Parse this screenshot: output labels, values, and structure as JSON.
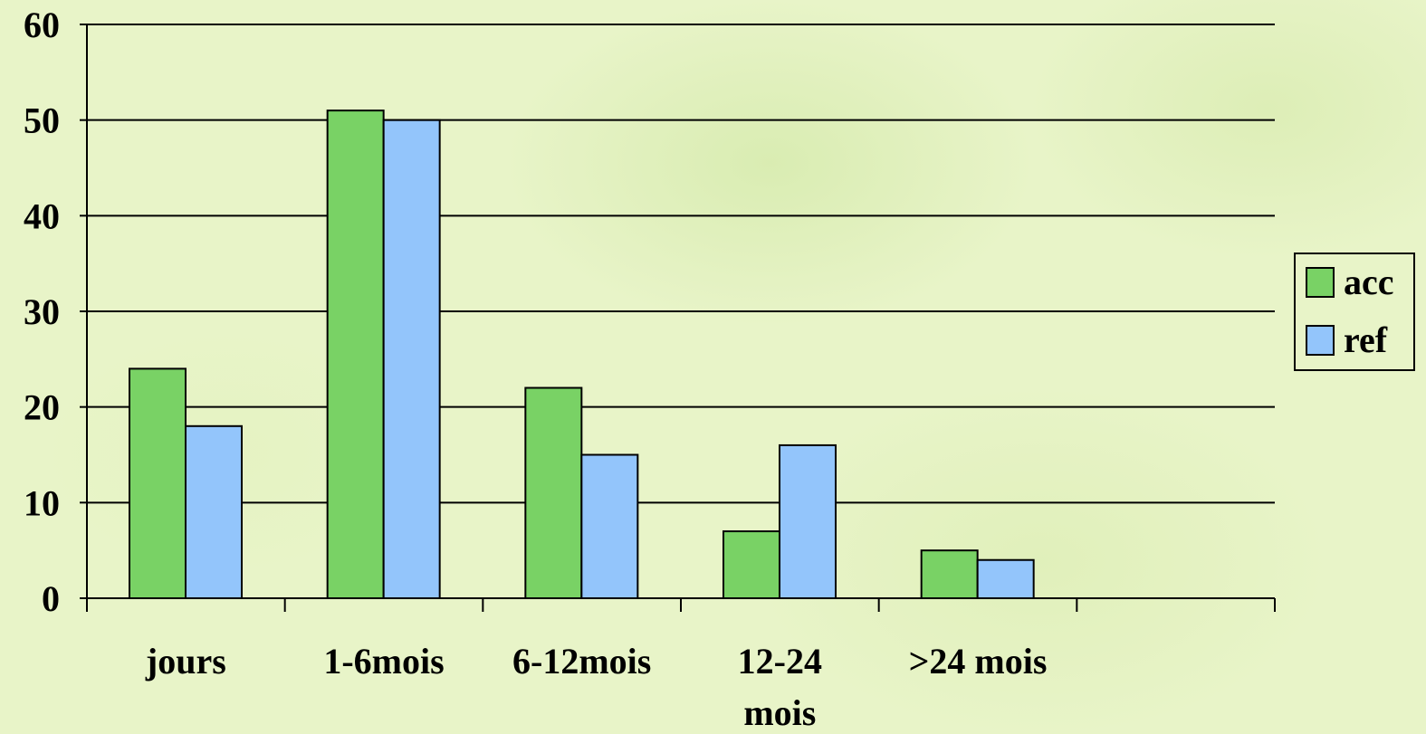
{
  "chart_data": {
    "type": "bar",
    "categories": [
      "jours",
      "1-6mois",
      "6-12mois",
      "12-24 mois",
      ">24 mois",
      ""
    ],
    "category_lines": [
      [
        "jours"
      ],
      [
        "1-6mois"
      ],
      [
        "6-12mois"
      ],
      [
        "12-24",
        "mois"
      ],
      [
        ">24 mois"
      ],
      []
    ],
    "series": [
      {
        "name": "acc",
        "color": "#79d265",
        "values": [
          24,
          51,
          22,
          7,
          5,
          null
        ]
      },
      {
        "name": "ref",
        "color": "#93c5fb",
        "values": [
          18,
          50,
          15,
          16,
          4,
          null
        ]
      }
    ],
    "yticks": [
      "0",
      "10",
      "20",
      "30",
      "40",
      "50",
      "60"
    ],
    "ylim": [
      0,
      60
    ],
    "grid": true,
    "legend": "right"
  }
}
